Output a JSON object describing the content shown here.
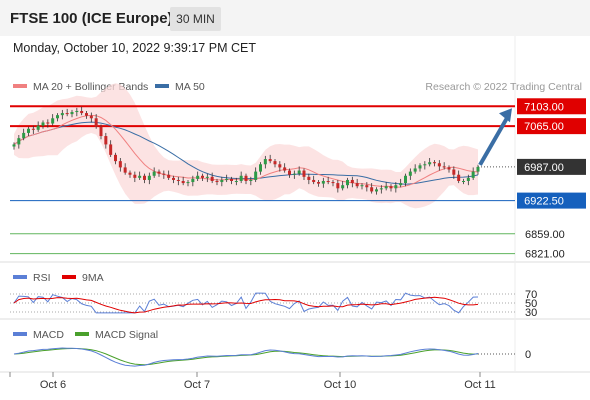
{
  "header": {
    "title": "FTSE 100 (ICE Europe)",
    "interval": "30 MIN"
  },
  "timestamp": "Monday, October 10, 2022 9:39:17 PM CET",
  "legend": {
    "ma20": "MA 20 + Bollinger Bands",
    "ma50": "MA 50",
    "ma20_color": "#f08080",
    "ma50_color": "#3a6ea5"
  },
  "copyright": "Research © 2022 Trading Central",
  "chart_data": {
    "type": "candlestick",
    "price_range": [
      6805,
      7115
    ],
    "x_ticks": [
      "Oct 6",
      "Oct 7",
      "Oct 10",
      "Oct 11"
    ],
    "last_price": 6987.0,
    "levels": [
      {
        "value": 7103.0,
        "label": "7103.00",
        "kind": "resistance",
        "color": "#e00000"
      },
      {
        "value": 7065.0,
        "label": "7065.00",
        "kind": "resistance",
        "color": "#e00000"
      },
      {
        "value": 6987.0,
        "label": "6987.00",
        "kind": "last",
        "color": "#333333"
      },
      {
        "value": 6922.5,
        "label": "6922.50",
        "kind": "pivot",
        "color": "#1560bd"
      },
      {
        "value": 6859.0,
        "label": "6859.00",
        "kind": "support",
        "color": "#3aa335"
      },
      {
        "value": 6821.0,
        "label": "6821.00",
        "kind": "support",
        "color": "#3aa335"
      }
    ],
    "closes": [
      7030,
      7042,
      7052,
      7060,
      7058,
      7066,
      7072,
      7070,
      7080,
      7086,
      7090,
      7088,
      7092,
      7094,
      7090,
      7085,
      7080,
      7064,
      7046,
      7030,
      7010,
      6998,
      6986,
      6976,
      6972,
      6966,
      6970,
      6962,
      6970,
      6978,
      6974,
      6972,
      6966,
      6962,
      6960,
      6956,
      6958,
      6964,
      6970,
      6966,
      6968,
      6960,
      6958,
      6962,
      6964,
      6960,
      6960,
      6970,
      6960,
      6962,
      6978,
      6992,
      7002,
      6998,
      6992,
      6986,
      6980,
      6972,
      6974,
      6980,
      6968,
      6962,
      6958,
      6955,
      6960,
      6958,
      6956,
      6946,
      6952,
      6962,
      6956,
      6950,
      6952,
      6948,
      6940,
      6944,
      6946,
      6950,
      6946,
      6952,
      6956,
      6970,
      6978,
      6984,
      6990,
      6992,
      6996,
      6994,
      6988,
      6986,
      6982,
      6972,
      6960,
      6960,
      6966,
      6978,
      6987
    ],
    "forecast_target": 7103.0,
    "rsi": {
      "series": [
        "RSI",
        "9MA"
      ],
      "levels": [
        70,
        50,
        30
      ],
      "colors": {
        "rsi": "#5b7fd6",
        "ma": "#e00000"
      }
    },
    "macd": {
      "series": [
        "MACD",
        "MACD Signal"
      ],
      "zero_label": "0",
      "colors": {
        "macd": "#5b7fd6",
        "signal": "#4aa02c"
      }
    }
  }
}
